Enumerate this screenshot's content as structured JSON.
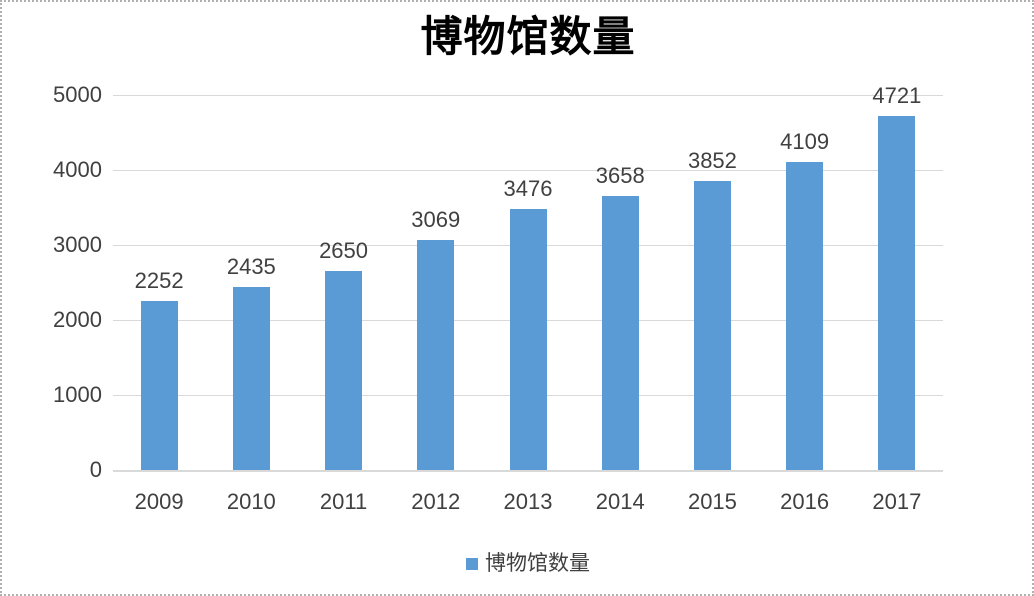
{
  "legend": {
    "label": "博物馆数量"
  },
  "colors": {
    "bar": "#5B9BD5",
    "gridline": "#D9D9D9",
    "text": "#404040",
    "title": "#000000",
    "border": "#B0B0B0"
  },
  "chart_data": {
    "type": "bar",
    "title": "博物馆数量",
    "categories": [
      "2009",
      "2010",
      "2011",
      "2012",
      "2013",
      "2014",
      "2015",
      "2016",
      "2017"
    ],
    "values": [
      2252,
      2435,
      2650,
      3069,
      3476,
      3658,
      3852,
      4109,
      4721
    ],
    "series_name": "博物馆数量",
    "xlabel": "",
    "ylabel": "",
    "ylim": [
      0,
      5000
    ],
    "yticks": [
      0,
      1000,
      2000,
      3000,
      4000,
      5000
    ],
    "grid": true,
    "data_labels": true,
    "legend_position": "bottom"
  }
}
